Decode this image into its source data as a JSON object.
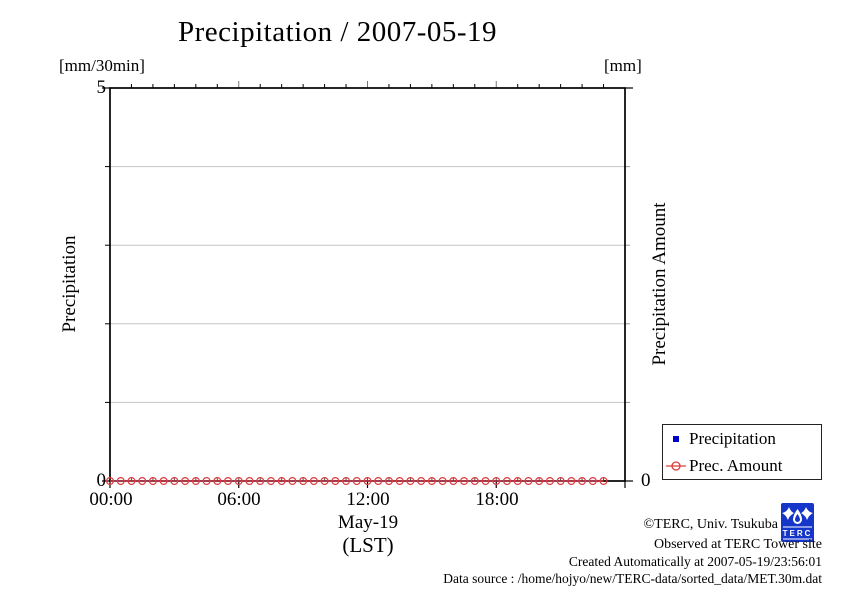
{
  "title": "Precipitation / 2007-05-19",
  "axes": {
    "left_unit": "[mm/30min]",
    "right_unit": "[mm]",
    "left_label": "Precipitation",
    "right_label": "Precipitation Amount",
    "left_top_tick": "5",
    "left_bottom_tick": "0",
    "right_bottom_tick": "0",
    "x_ticks": [
      "00:00",
      "06:00",
      "12:00",
      "18:00"
    ],
    "x_label_line1": "May-19",
    "x_label_line2": "(LST)"
  },
  "legend": {
    "items": [
      {
        "label": "Precipitation",
        "marker": "square",
        "color": "#0000cc"
      },
      {
        "label": "Prec. Amount",
        "marker": "circle-line",
        "color": "#dd3c3c"
      }
    ]
  },
  "footer": {
    "copyright": "©TERC, Univ. Tsukuba",
    "observed": "Observed at TERC Tower site",
    "created": "Created Automatically at 2007-05-19/23:56:01",
    "source": "Data source : /home/hojyo/new/TERC-data/sorted_data/MET.30m.dat",
    "logo_text": "TERC"
  },
  "colors": {
    "prec_amount": "#dd3c3c",
    "precipitation": "#0000cc",
    "grid": "#c4c4c4",
    "axis": "#000000",
    "logo_blue": "#1536c8"
  },
  "chart_data": {
    "type": "line",
    "title": "Precipitation / 2007-05-19",
    "xlabel": "May-19 (LST)",
    "ylabel_left": "Precipitation [mm/30min]",
    "ylabel_right": "Precipitation Amount [mm]",
    "xlim_hours": [
      0,
      24
    ],
    "ylim_left": [
      0,
      5
    ],
    "right_axis_bottom": 0,
    "grid": true,
    "gridlines_y": [
      1,
      2,
      3,
      4
    ],
    "x_major_ticks_hours": [
      0,
      6,
      12,
      18,
      24
    ],
    "x_minor_tick_interval_hours": 1,
    "legend_position": "outside-right-bottom",
    "x_hours": [
      0,
      0.5,
      1,
      1.5,
      2,
      2.5,
      3,
      3.5,
      4,
      4.5,
      5,
      5.5,
      6,
      6.5,
      7,
      7.5,
      8,
      8.5,
      9,
      9.5,
      10,
      10.5,
      11,
      11.5,
      12,
      12.5,
      13,
      13.5,
      14,
      14.5,
      15,
      15.5,
      16,
      16.5,
      17,
      17.5,
      18,
      18.5,
      19,
      19.5,
      20,
      20.5,
      21,
      21.5,
      22,
      22.5,
      23
    ],
    "series": [
      {
        "name": "Precipitation",
        "marker": "square",
        "color": "#0000cc",
        "values": [
          0,
          0,
          0,
          0,
          0,
          0,
          0,
          0,
          0,
          0,
          0,
          0,
          0,
          0,
          0,
          0,
          0,
          0,
          0,
          0,
          0,
          0,
          0,
          0,
          0,
          0,
          0,
          0,
          0,
          0,
          0,
          0,
          0,
          0,
          0,
          0,
          0,
          0,
          0,
          0,
          0,
          0,
          0,
          0,
          0,
          0,
          0
        ]
      },
      {
        "name": "Prec. Amount",
        "marker": "circle",
        "color": "#dd3c3c",
        "values": [
          0,
          0,
          0,
          0,
          0,
          0,
          0,
          0,
          0,
          0,
          0,
          0,
          0,
          0,
          0,
          0,
          0,
          0,
          0,
          0,
          0,
          0,
          0,
          0,
          0,
          0,
          0,
          0,
          0,
          0,
          0,
          0,
          0,
          0,
          0,
          0,
          0,
          0,
          0,
          0,
          0,
          0,
          0,
          0,
          0,
          0,
          0
        ]
      }
    ]
  }
}
